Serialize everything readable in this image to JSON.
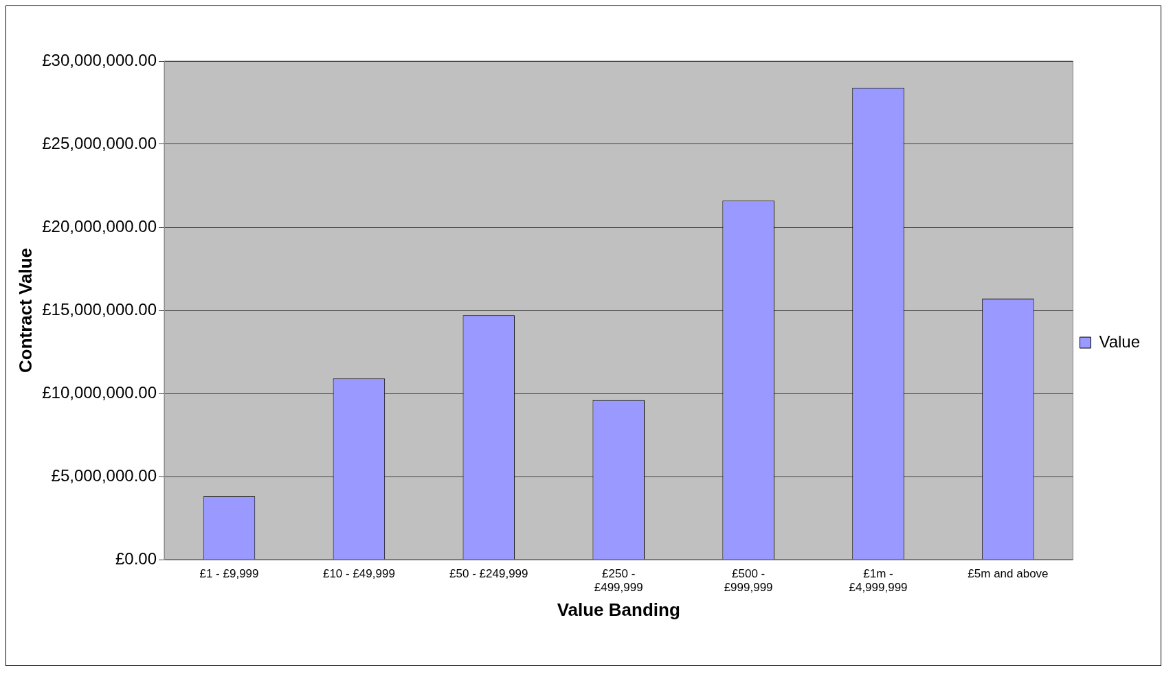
{
  "chart_data": {
    "type": "bar",
    "xlabel": "Value Banding",
    "ylabel": "Contract Value",
    "categories": [
      "£1 - £9,999",
      "£10 - £49,999",
      "£50 - £249,999",
      "£250 - £499,999",
      "£500 - £999,999",
      "£1m - £4,999,999",
      "£5m and above"
    ],
    "series": [
      {
        "name": "Value",
        "color": "#9999ff",
        "values": [
          3800000,
          10900000,
          14700000,
          9600000,
          21600000,
          28400000,
          15700000
        ]
      }
    ],
    "ylim": [
      0,
      30000000
    ],
    "yticks": [
      {
        "value": 0,
        "label": "£0.00"
      },
      {
        "value": 5000000,
        "label": "£5,000,000.00"
      },
      {
        "value": 10000000,
        "label": "£10,000,000.00"
      },
      {
        "value": 15000000,
        "label": "£15,000,000.00"
      },
      {
        "value": 20000000,
        "label": "£20,000,000.00"
      },
      {
        "value": 25000000,
        "label": "£25,000,000.00"
      },
      {
        "value": 30000000,
        "label": "£30,000,000.00"
      }
    ],
    "grid": "y",
    "legend": "right"
  }
}
